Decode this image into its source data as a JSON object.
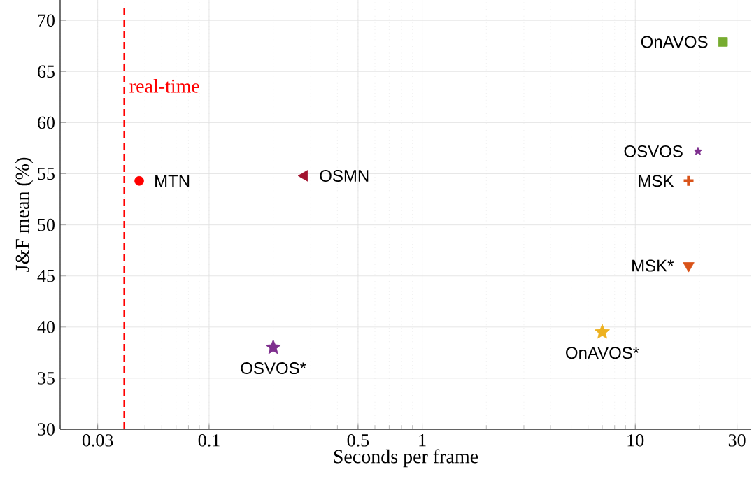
{
  "chart_data": {
    "type": "scatter",
    "xlabel": "Seconds per frame",
    "ylabel": "J&F mean (%)",
    "log": "x",
    "grid": true,
    "xlim": [
      0.02,
      35
    ],
    "ylim": [
      30,
      72
    ],
    "xticks": [
      0.03,
      0.1,
      0.5,
      1,
      10,
      30
    ],
    "yticks": [
      30,
      35,
      40,
      45,
      50,
      55,
      60,
      65,
      70
    ],
    "ref_lines": [
      {
        "axis": "x",
        "value": 0.04,
        "label": "real-time",
        "color": "#ff0000",
        "line_style": "dashed"
      }
    ],
    "series": [
      {
        "name": "MTN",
        "color": "#ff0000",
        "x": [
          0.047
        ],
        "values": [
          54.3
        ],
        "marker": "circle"
      },
      {
        "name": "OSMN",
        "color": "#a2142f",
        "x": [
          0.28
        ],
        "values": [
          54.8
        ],
        "marker": "triangle"
      },
      {
        "name": "OSVOS*",
        "color": "#7e2f8e",
        "x": [
          0.2
        ],
        "values": [
          38.0
        ],
        "marker": "star"
      },
      {
        "name": "OnAVOS",
        "color": "#77ac30",
        "x": [
          25.8
        ],
        "values": [
          67.9
        ],
        "marker": "square"
      },
      {
        "name": "OSVOS",
        "color": "#7e2f8e",
        "x": [
          19.7
        ],
        "values": [
          57.2
        ],
        "marker": "star"
      },
      {
        "name": "MSK",
        "color": "#d95319",
        "x": [
          17.8
        ],
        "values": [
          54.3
        ],
        "marker": "cross"
      },
      {
        "name": "MSK*",
        "color": "#d95319",
        "x": [
          17.8
        ],
        "values": [
          46.0
        ],
        "marker": "triangle"
      },
      {
        "name": "OnAVOS*",
        "color": "#edb120",
        "x": [
          7.0
        ],
        "values": [
          39.5
        ],
        "marker": "star"
      }
    ]
  }
}
